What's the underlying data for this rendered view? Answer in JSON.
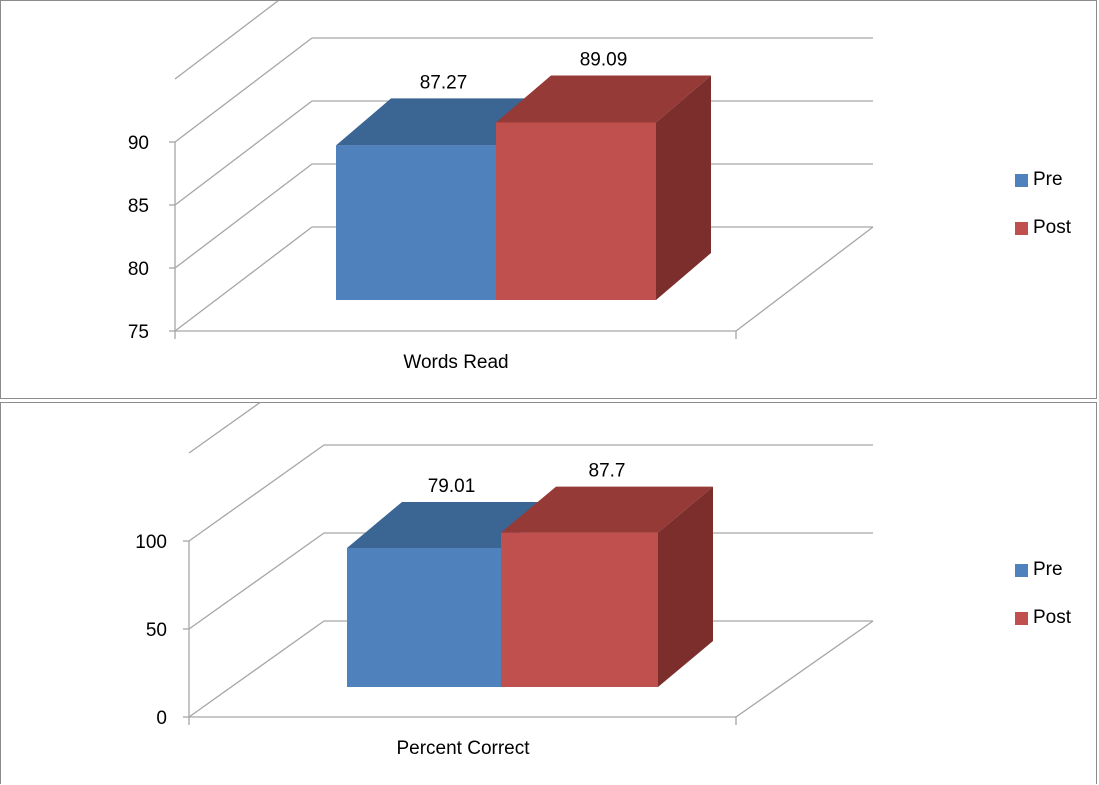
{
  "chart_data": [
    {
      "type": "bar",
      "categories": [
        "Words Read"
      ],
      "series": [
        {
          "name": "Pre",
          "values": [
            87.27
          ]
        },
        {
          "name": "Post",
          "values": [
            89.09
          ]
        }
      ],
      "data_labels": [
        "87.27",
        "89.09"
      ],
      "yticks": [
        "75",
        "80",
        "85",
        "90"
      ],
      "ylim": [
        75,
        90
      ],
      "xlabel": "",
      "ylabel": "",
      "title": "",
      "grid": true,
      "legend": "right",
      "three_d": true
    },
    {
      "type": "bar",
      "categories": [
        "Percent Correct"
      ],
      "series": [
        {
          "name": "Pre",
          "values": [
            79.01
          ]
        },
        {
          "name": "Post",
          "values": [
            87.7
          ]
        }
      ],
      "data_labels": [
        "79.01",
        "87.7"
      ],
      "yticks": [
        "0",
        "50",
        "100"
      ],
      "ylim": [
        0,
        100
      ],
      "xlabel": "",
      "ylabel": "",
      "title": "",
      "grid": true,
      "legend": "right",
      "three_d": true
    }
  ],
  "colors": {
    "pre_front": "#4f81bd",
    "pre_top": "#3b6593",
    "post_front": "#c0504d",
    "post_top": "#953a37",
    "post_side": "#7b2e2c",
    "grid": "#a6a6a6"
  }
}
